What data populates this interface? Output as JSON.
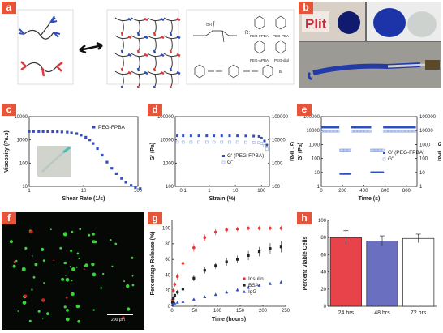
{
  "labels": {
    "a": "a",
    "b": "b",
    "c": "c",
    "d": "d",
    "e": "e",
    "f": "f",
    "g": "g",
    "h": "h"
  },
  "panel_a": {
    "r_eq": "R:",
    "compounds": [
      "PEG-FPBA",
      "PEG-PBA",
      "PEG-diol",
      "PEG-APBA"
    ],
    "groups": [
      "B",
      "OH",
      "OH",
      "F",
      "NH",
      "O",
      "n",
      "R"
    ]
  },
  "panel_b": {
    "mold_text": "PIit"
  },
  "colors": {
    "blue": "#2f4fbf",
    "red": "#e23a3a",
    "dark": "#222222",
    "lightblue": "#8fa8e0",
    "bar_red": "#e8424a",
    "bar_blue": "#6b6fc0",
    "gray": "#888888"
  },
  "chart_data": [
    {
      "id": "c",
      "type": "scatter",
      "xlabel": "Shear Rate (1/s)",
      "ylabel": "Viscosity (Pa.s)",
      "xscale": "log",
      "yscale": "log",
      "xlim": [
        1,
        100
      ],
      "ylim": [
        10,
        10000
      ],
      "xticks": [
        "1",
        "10",
        "100"
      ],
      "yticks": [
        "10",
        "100",
        "1000",
        "10000"
      ],
      "series": [
        {
          "name": "PEG-FPBA",
          "x": [
            1,
            1.2,
            1.5,
            1.8,
            2.2,
            2.7,
            3.3,
            4,
            5,
            6,
            7.5,
            9,
            11,
            13,
            15,
            18,
            22,
            27,
            33,
            40,
            50,
            60,
            75,
            90,
            110
          ],
          "y": [
            2300,
            2300,
            2300,
            2290,
            2280,
            2270,
            2250,
            2200,
            2150,
            2000,
            1850,
            1600,
            1300,
            1000,
            700,
            420,
            220,
            110,
            60,
            35,
            22,
            15,
            11,
            9,
            8
          ]
        }
      ]
    },
    {
      "id": "d",
      "type": "scatter",
      "xlabel": "Strain (%)",
      "ylabel": "G' (Pa)",
      "ylabel2": "G'' (Pa)",
      "xscale": "log",
      "yscale": "log",
      "xlim": [
        0.05,
        200
      ],
      "ylim": [
        100,
        100000
      ],
      "xticks": [
        "0.1",
        "1",
        "10",
        "100"
      ],
      "yticks": [
        "100",
        "1000",
        "10000",
        "100000"
      ],
      "yticks2": [
        "100",
        "1000",
        "10000",
        "100000"
      ],
      "series": [
        {
          "name": "G' (PEG-FPBA)",
          "x": [
            0.06,
            0.1,
            0.2,
            0.4,
            0.8,
            1.5,
            3,
            6,
            12,
            25,
            50,
            80,
            100,
            130,
            160
          ],
          "y": [
            15000,
            15000,
            15000,
            15000,
            15000,
            15000,
            15000,
            15000,
            15000,
            14800,
            14500,
            14000,
            12000,
            9000,
            6000
          ]
        },
        {
          "name": "G''",
          "x": [
            0.06,
            0.1,
            0.2,
            0.4,
            0.8,
            1.5,
            3,
            6,
            12,
            25,
            50,
            80,
            100,
            130,
            160
          ],
          "y": [
            8000,
            8000,
            8000,
            8000,
            8000,
            8000,
            8000,
            8000,
            8000,
            7900,
            7800,
            7600,
            7000,
            5500,
            4000
          ]
        }
      ]
    },
    {
      "id": "e",
      "type": "scatter",
      "xlabel": "Time (s)",
      "ylabel": "G' (Pa)",
      "ylabel2": "G'' (Pa)",
      "yscale": "log",
      "xlim": [
        0,
        900
      ],
      "ylim": [
        1,
        100000
      ],
      "xticks": [
        "0",
        "200",
        "400",
        "600",
        "800"
      ],
      "yticks": [
        "1",
        "10",
        "100",
        "1000",
        "10000",
        "100000"
      ],
      "yticks2": [
        "1",
        "10",
        "100",
        "1000",
        "10000",
        "100000"
      ],
      "series": [
        {
          "name": "G' (PEG-FPBA)",
          "segments": [
            {
              "x0": 10,
              "x1": 160,
              "y": 17000
            },
            {
              "x0": 180,
              "x1": 270,
              "y": 8
            },
            {
              "x0": 290,
              "x1": 460,
              "y": 17000
            },
            {
              "x0": 470,
              "x1": 580,
              "y": 10
            },
            {
              "x0": 590,
              "x1": 880,
              "y": 17000
            }
          ]
        },
        {
          "name": "G''",
          "segments": [
            {
              "x0": 10,
              "x1": 160,
              "y": 9000
            },
            {
              "x0": 180,
              "x1": 270,
              "y": 400
            },
            {
              "x0": 290,
              "x1": 460,
              "y": 9000
            },
            {
              "x0": 470,
              "x1": 580,
              "y": 400
            },
            {
              "x0": 590,
              "x1": 880,
              "y": 9000
            }
          ]
        }
      ]
    },
    {
      "id": "g",
      "type": "scatter",
      "xlabel": "Time (hours)",
      "ylabel": "Percentage Release (%)",
      "xlim": [
        0,
        250
      ],
      "ylim": [
        0,
        110
      ],
      "xticks": [
        "0",
        "50",
        "100",
        "150",
        "200",
        "250"
      ],
      "yticks": [
        "0",
        "20",
        "40",
        "60",
        "80",
        "100"
      ],
      "series": [
        {
          "name": "Insulin",
          "x": [
            1,
            3,
            6,
            12,
            24,
            48,
            72,
            96,
            120,
            144,
            168,
            192,
            216,
            240
          ],
          "y": [
            8,
            20,
            28,
            38,
            55,
            75,
            88,
            95,
            98,
            99,
            100,
            100,
            100,
            100
          ],
          "err": [
            2,
            3,
            3,
            4,
            5,
            5,
            4,
            4,
            3,
            3,
            3,
            3,
            3,
            3
          ]
        },
        {
          "name": "BSA",
          "x": [
            1,
            3,
            6,
            12,
            24,
            48,
            72,
            96,
            120,
            144,
            168,
            192,
            216,
            240
          ],
          "y": [
            5,
            10,
            14,
            18,
            22,
            36,
            46,
            52,
            57,
            60,
            65,
            70,
            74,
            76
          ],
          "err": [
            2,
            2,
            2,
            3,
            3,
            4,
            4,
            4,
            5,
            5,
            6,
            6,
            7,
            7
          ]
        },
        {
          "name": "IgG",
          "x": [
            1,
            3,
            6,
            12,
            24,
            48,
            72,
            96,
            120,
            144,
            168,
            192,
            216,
            240
          ],
          "y": [
            2,
            3,
            4,
            5,
            6,
            9,
            12,
            15,
            18,
            21,
            24,
            27,
            29,
            31
          ],
          "err": [
            1,
            1,
            1,
            1,
            1,
            1,
            1,
            2,
            2,
            2,
            2,
            2,
            2,
            2
          ]
        }
      ]
    },
    {
      "id": "h",
      "type": "bar",
      "ylabel": "Percent Viable Cells",
      "ylim": [
        0,
        100
      ],
      "yticks": [
        "0",
        "20",
        "40",
        "60",
        "80",
        "100"
      ],
      "categories": [
        "24 hrs",
        "48 hrs",
        "72 hrs"
      ],
      "values": [
        80,
        76,
        79
      ],
      "err": [
        8,
        6,
        5
      ]
    }
  ],
  "panel_f": {
    "scalebar": "200 μm"
  }
}
